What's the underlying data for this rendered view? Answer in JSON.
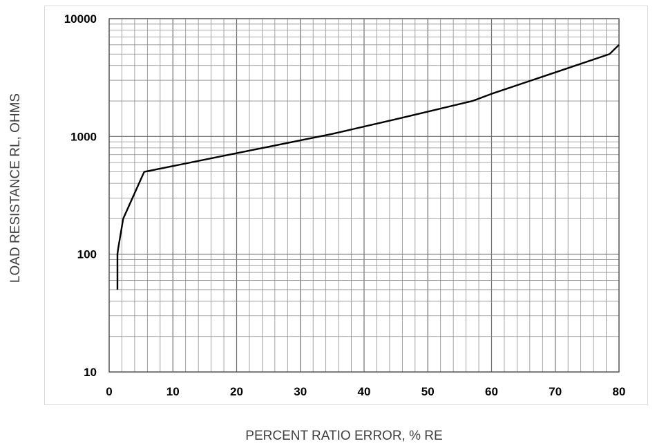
{
  "chart_data": {
    "type": "line",
    "title": "",
    "xlabel": "PERCENT RATIO ERROR, % RE",
    "ylabel": "LOAD RESISTANCE RL, OHMS",
    "x_scale": "linear",
    "y_scale": "log",
    "xlim": [
      0,
      80
    ],
    "ylim": [
      10,
      10000
    ],
    "grid": true,
    "legend": "none",
    "x_ticks": [
      "0",
      "10",
      "20",
      "30",
      "40",
      "50",
      "60",
      "70",
      "80"
    ],
    "y_ticks": [
      "10",
      "100",
      "1000",
      "10000"
    ],
    "series": [
      {
        "x": [
          1.3,
          1.3,
          1.4,
          2.2,
          5.5,
          20,
          35,
          45,
          57,
          60,
          70,
          78.5,
          80
        ],
        "y": [
          50,
          100,
          110,
          200,
          500,
          720,
          1050,
          1400,
          2000,
          2300,
          3500,
          5000,
          6000
        ]
      }
    ],
    "colors": {
      "line": "#000000",
      "grid": "#8c8c8c"
    }
  }
}
